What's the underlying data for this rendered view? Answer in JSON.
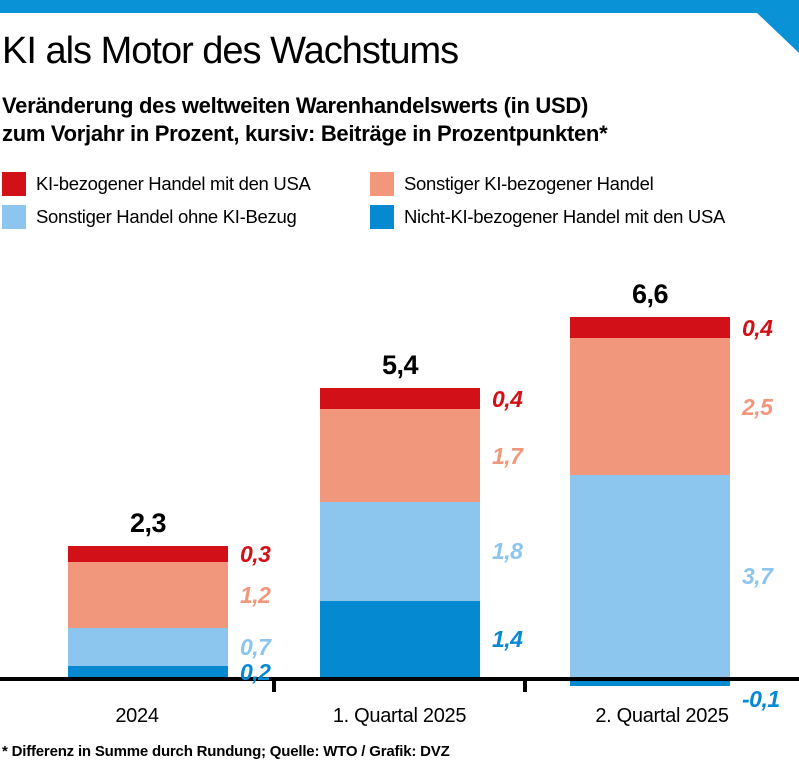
{
  "banner_color": "#0992d6",
  "header": {
    "title": "KI als Motor des Wachstums",
    "subtitle_line1": "Veränderung des weltweiten Warenhandelswerts (in USD)",
    "subtitle_line2": "zum Vorjahr in Prozent, kursiv: Beiträge in Prozentpunkten*"
  },
  "legend": {
    "items": [
      {
        "label": "KI-bezogener Handel mit den USA",
        "color": "#d11117"
      },
      {
        "label": "Sonstiger KI-bezogener Handel",
        "color": "#f0977c"
      },
      {
        "label": "Sonstiger Handel ohne KI-Bezug",
        "color": "#8cc5ed"
      },
      {
        "label": "Nicht-KI-bezogener Handel mit den USA",
        "color": "#0589d1"
      }
    ]
  },
  "chart_data": {
    "type": "bar",
    "stacked": true,
    "title": "KI als Motor des Wachstums",
    "ylabel": "Veränderung zum Vorjahr in Prozent / Beiträge in Prozentpunkten",
    "categories": [
      "2024",
      "1. Quartal 2025",
      "2. Quartal 2025"
    ],
    "totals": [
      "2,3",
      "5,4",
      "6,6"
    ],
    "series": [
      {
        "name": "KI-bezogener Handel mit den USA",
        "color": "#d11117",
        "values": [
          0.3,
          0.4,
          0.4
        ],
        "labels": [
          "0,3",
          "0,4",
          "0,4"
        ]
      },
      {
        "name": "Sonstiger KI-bezogener Handel",
        "color": "#f0977c",
        "values": [
          1.2,
          1.7,
          2.5
        ],
        "labels": [
          "1,2",
          "1,7",
          "2,5"
        ]
      },
      {
        "name": "Sonstiger Handel ohne KI-Bezug",
        "color": "#8cc5ed",
        "values": [
          0.7,
          1.8,
          3.7
        ],
        "labels": [
          "0,7",
          "1,8",
          "3,7"
        ]
      },
      {
        "name": "Nicht-KI-bezogener Handel mit den USA",
        "color": "#0589d1",
        "values": [
          0.2,
          1.4,
          -0.1
        ],
        "labels": [
          "0,2",
          "1,4",
          "-0,1"
        ]
      }
    ],
    "legend_position": "top",
    "grid": false
  },
  "footnote": "* Differenz in Summe durch Rundung; Quelle: WTO / Grafik: DVZ"
}
